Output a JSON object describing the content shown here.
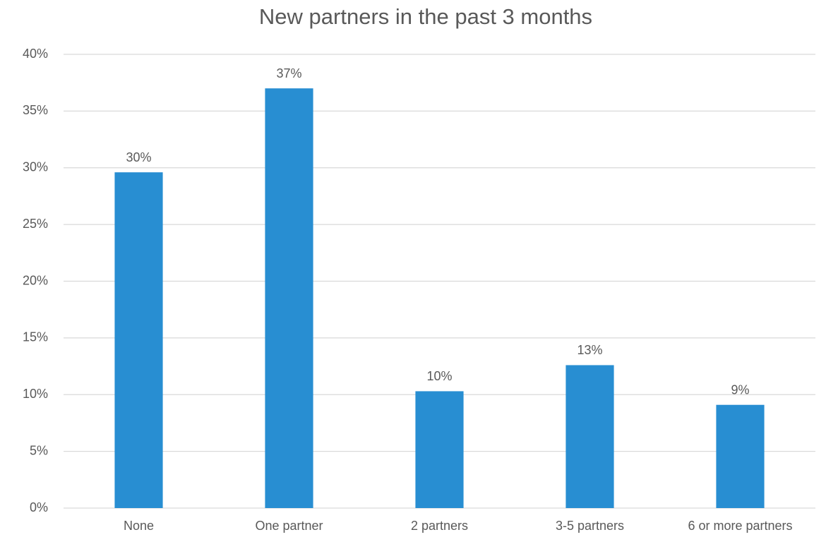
{
  "chart_data": {
    "type": "bar",
    "title": "New partners in the past 3 months",
    "categories": [
      "None",
      "One partner",
      "2 partners",
      "3-5 partners",
      "6 or more partners"
    ],
    "values": [
      29.6,
      37.0,
      10.3,
      12.6,
      9.1
    ],
    "value_labels": [
      "30%",
      "37%",
      "10%",
      "13%",
      "9%"
    ],
    "color": "#288ed2",
    "ylim": [
      0,
      40
    ],
    "yticks": [
      {
        "value": 0,
        "label": "0%"
      },
      {
        "value": 5,
        "label": "5%"
      },
      {
        "value": 10,
        "label": "10%"
      },
      {
        "value": 15,
        "label": "15%"
      },
      {
        "value": 20,
        "label": "20%"
      },
      {
        "value": 25,
        "label": "25%"
      },
      {
        "value": 30,
        "label": "30%"
      },
      {
        "value": 35,
        "label": "35%"
      },
      {
        "value": 40,
        "label": "40%"
      }
    ],
    "grid": true
  }
}
